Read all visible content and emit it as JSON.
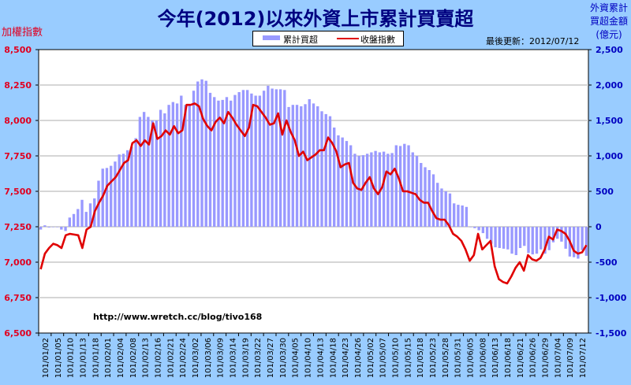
{
  "chart_data": {
    "type": "bar+line",
    "title": "今年(2012)以來外資上市累計買賣超",
    "ylabel_left": "加權指數",
    "ylabel_right": "外資累計買超金額(億元)",
    "updated": "最後更新：2012/07/12",
    "watermark": "http://www.wretch.cc/blog/tivo168",
    "legend_position": "top-center",
    "grid": true,
    "ylim_left": [
      6500,
      8500
    ],
    "ylim_right": [
      -1500,
      2500
    ],
    "yticks_left": [
      "8,500",
      "8,250",
      "8,000",
      "7,750",
      "7,500",
      "7,250",
      "7,000",
      "6,750",
      "6,500"
    ],
    "yticks_right": [
      "2,500",
      "2,000",
      "1,500",
      "1,000",
      "500",
      "0",
      "-500",
      "-1,000",
      "-1,500"
    ],
    "xtick_labels": [
      "101/01/02",
      "101/01/05",
      "101/01/10",
      "101/01/13",
      "101/01/18",
      "101/02/01",
      "101/02/04",
      "101/02/08",
      "101/02/13",
      "101/02/16",
      "101/02/21",
      "101/02/24",
      "101/03/02",
      "101/03/06",
      "101/03/09",
      "101/03/14",
      "101/03/19",
      "101/03/22",
      "101/03/27",
      "101/03/30",
      "101/04/05",
      "101/04/10",
      "101/04/13",
      "101/04/18",
      "101/04/23",
      "101/04/26",
      "101/05/02",
      "101/05/07",
      "101/05/10",
      "101/05/15",
      "101/05/18",
      "101/05/23",
      "101/05/28",
      "101/05/31",
      "101/06/05",
      "101/06/08",
      "101/06/13",
      "101/06/18",
      "101/06/21",
      "101/06/26",
      "101/06/29",
      "101/07/04",
      "101/07/09",
      "101/07/12"
    ],
    "series": [
      {
        "name": "累計買超",
        "type": "bar",
        "axis": "right",
        "color": "#9999ff",
        "values": [
          -40,
          20,
          -10,
          0,
          0,
          -40,
          -60,
          130,
          180,
          250,
          380,
          210,
          330,
          400,
          650,
          820,
          830,
          860,
          920,
          1020,
          1030,
          1080,
          1130,
          1250,
          1550,
          1620,
          1550,
          1500,
          1500,
          1650,
          1600,
          1720,
          1760,
          1740,
          1850,
          1720,
          1720,
          1920,
          2050,
          2080,
          2060,
          1890,
          1830,
          1780,
          1790,
          1830,
          1780,
          1860,
          1900,
          1930,
          1930,
          1880,
          1850,
          1850,
          1920,
          1990,
          1950,
          1940,
          1940,
          1930,
          1690,
          1720,
          1720,
          1700,
          1730,
          1800,
          1740,
          1700,
          1630,
          1590,
          1560,
          1400,
          1290,
          1260,
          1210,
          1150,
          1030,
          1000,
          1010,
          1030,
          1050,
          1070,
          1050,
          1060,
          1030,
          1040,
          1150,
          1140,
          1170,
          1150,
          1050,
          1000,
          900,
          840,
          800,
          740,
          620,
          540,
          500,
          470,
          330,
          310,
          300,
          280,
          0,
          -20,
          -50,
          -90,
          -170,
          -240,
          -290,
          -300,
          -310,
          -320,
          -380,
          -400,
          -300,
          -270,
          -370,
          -390,
          -380,
          -320,
          -380,
          -330,
          -220,
          -170,
          -210,
          -310,
          -420,
          -430,
          -450,
          -330,
          -410
        ]
      },
      {
        "name": "收盤指數",
        "type": "line",
        "axis": "left",
        "color": "#e00000",
        "values": [
          6950,
          7060,
          7100,
          7130,
          7120,
          7100,
          7190,
          7200,
          7195,
          7190,
          7100,
          7230,
          7250,
          7360,
          7420,
          7470,
          7540,
          7570,
          7600,
          7650,
          7700,
          7720,
          7840,
          7860,
          7820,
          7860,
          7830,
          7980,
          7870,
          7890,
          7930,
          7900,
          7960,
          7910,
          7930,
          8110,
          8110,
          8120,
          8100,
          8010,
          7960,
          7930,
          7990,
          8020,
          7980,
          8060,
          8020,
          7970,
          7930,
          7890,
          7950,
          8110,
          8100,
          8060,
          8020,
          7970,
          7980,
          8050,
          7900,
          8000,
          7920,
          7860,
          7750,
          7780,
          7720,
          7740,
          7760,
          7790,
          7790,
          7880,
          7840,
          7780,
          7670,
          7690,
          7700,
          7560,
          7520,
          7510,
          7560,
          7600,
          7520,
          7480,
          7530,
          7640,
          7620,
          7660,
          7590,
          7500,
          7500,
          7490,
          7480,
          7440,
          7420,
          7420,
          7360,
          7310,
          7300,
          7300,
          7260,
          7200,
          7180,
          7150,
          7090,
          7010,
          7050,
          7200,
          7090,
          7120,
          7150,
          6970,
          6880,
          6860,
          6850,
          6900,
          6960,
          7000,
          6940,
          7050,
          7020,
          7010,
          7030,
          7090,
          7180,
          7160,
          7230,
          7220,
          7200,
          7150,
          7080,
          7060,
          7070,
          7120
        ]
      }
    ]
  }
}
